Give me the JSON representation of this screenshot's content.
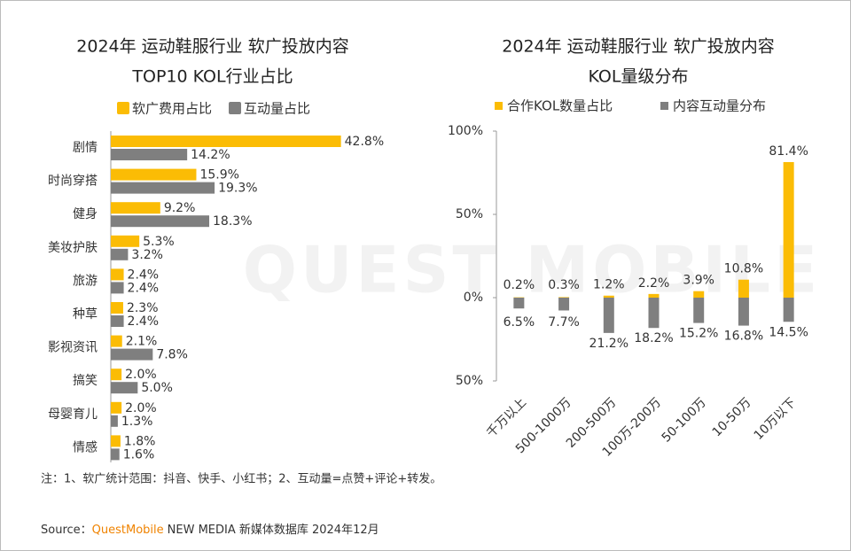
{
  "watermark": "QUEST MOBILE",
  "chart_data": [
    {
      "type": "hbar",
      "title": "2024年 运动鞋服行业 软广投放内容",
      "subtitle": "TOP10 KOL行业占比",
      "categories": [
        "剧情",
        "时尚穿搭",
        "健身",
        "美妆护肤",
        "旅游",
        "种草",
        "影视资讯",
        "搞笑",
        "母婴育儿",
        "情感"
      ],
      "xlim": [
        0,
        45
      ],
      "series": [
        {
          "name": "软广费用占比",
          "color": "#fbbc05",
          "values": [
            42.8,
            15.9,
            9.2,
            5.3,
            2.4,
            2.3,
            2.1,
            2.0,
            2.0,
            1.8
          ],
          "value_labels": [
            "42.8%",
            "15.9%",
            "9.2%",
            "5.3%",
            "2.4%",
            "2.3%",
            "2.1%",
            "2.0%",
            "2.0%",
            "1.8%"
          ]
        },
        {
          "name": "互动量占比",
          "color": "#7f7f7f",
          "values": [
            14.2,
            19.3,
            18.3,
            3.2,
            2.4,
            2.4,
            7.8,
            5.0,
            1.3,
            1.6
          ],
          "value_labels": [
            "14.2%",
            "19.3%",
            "18.3%",
            "3.2%",
            "2.4%",
            "2.4%",
            "7.8%",
            "5.0%",
            "1.3%",
            "1.6%"
          ]
        }
      ]
    },
    {
      "type": "bar",
      "title": "2024年 运动鞋服行业 软广投放内容",
      "subtitle": "KOL量级分布",
      "categories": [
        "千万以上",
        "500-1000万",
        "200-500万",
        "100万-200万",
        "50-100万",
        "10-50万",
        "10万以下"
      ],
      "ylim": [
        -50,
        100
      ],
      "yticks": [
        {
          "value": 100,
          "label": "100%"
        },
        {
          "value": 50,
          "label": "50%"
        },
        {
          "value": 0,
          "label": "0%"
        },
        {
          "value": -50,
          "label": "50%"
        }
      ],
      "series": [
        {
          "name": "合作KOL数量占比",
          "color": "#fbbc05",
          "values": [
            0.2,
            0.3,
            1.2,
            2.2,
            3.9,
            10.8,
            81.4
          ],
          "value_labels": [
            "0.2%",
            "0.3%",
            "1.2%",
            "2.2%",
            "3.9%",
            "10.8%",
            "81.4%"
          ]
        },
        {
          "name": "内容互动量分布",
          "color": "#7f7f7f",
          "values": [
            -6.5,
            -7.7,
            -21.2,
            -18.2,
            -15.2,
            -16.8,
            -14.5
          ],
          "value_labels": [
            "6.5%",
            "7.7%",
            "21.2%",
            "18.2%",
            "15.2%",
            "16.8%",
            "14.5%"
          ]
        }
      ]
    }
  ],
  "note": "注：1、软广统计范围：抖音、快手、小红书；2、互动量=点赞+评论+转发。",
  "source": {
    "label": "Source：",
    "brand": "QuestMobile",
    "text": "NEW MEDIA 新媒体数据库 2024年12月"
  }
}
